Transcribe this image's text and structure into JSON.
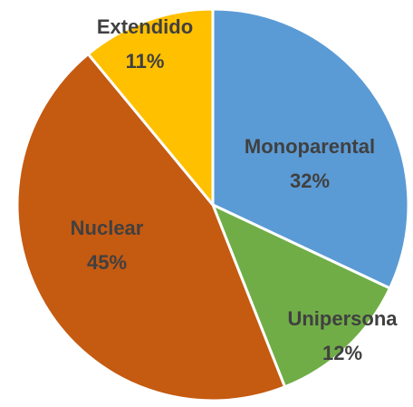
{
  "chart_data": {
    "type": "pie",
    "categories": [
      "Monoparental",
      "Unipersona",
      "Nuclear",
      "Extendido"
    ],
    "values": [
      32,
      12,
      45,
      11
    ],
    "value_labels": [
      "32%",
      "12%",
      "45%",
      "11%"
    ],
    "colors": [
      "#5b9bd5",
      "#70ad47",
      "#c55a11",
      "#ffc000"
    ]
  }
}
